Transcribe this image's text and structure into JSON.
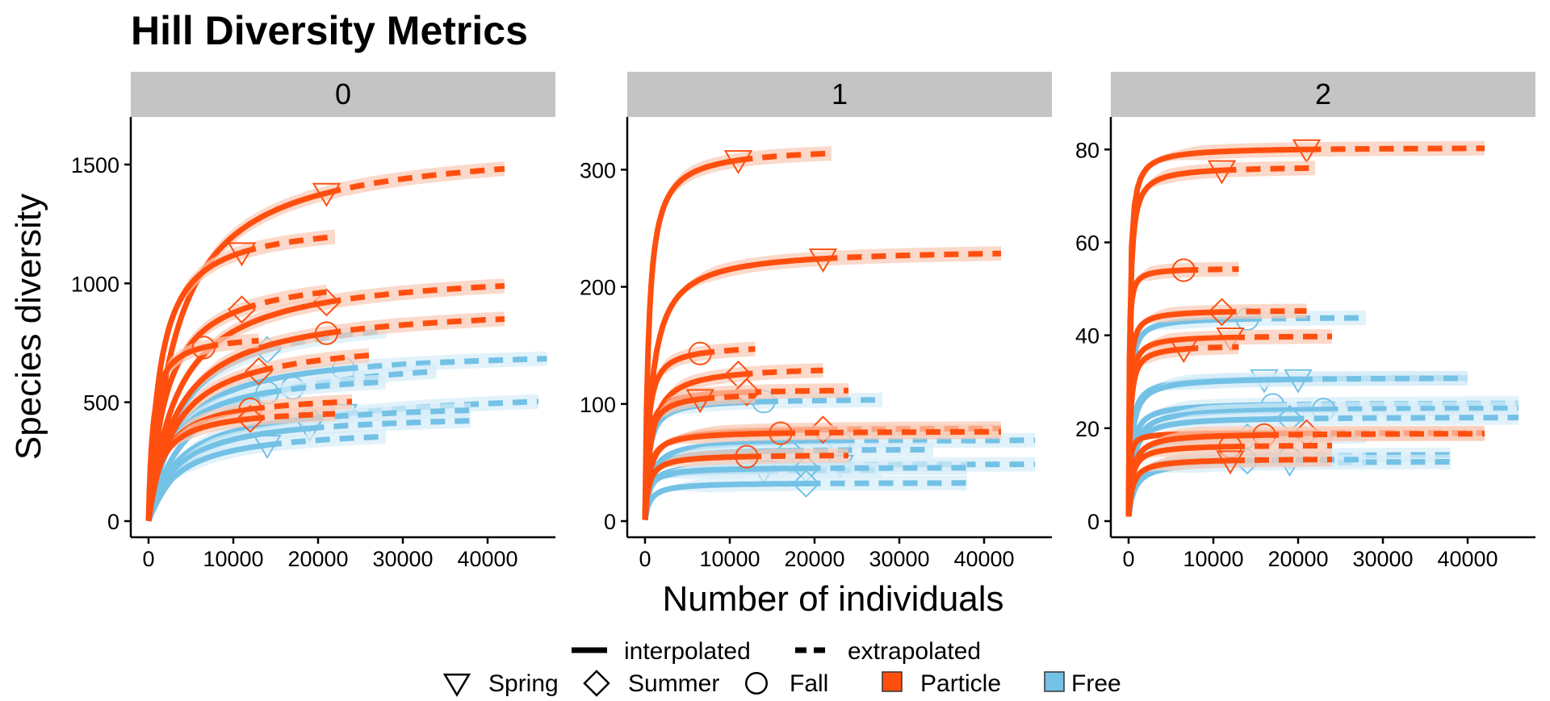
{
  "colors": {
    "particle": "#FF4F0F",
    "free": "#74C1E6",
    "particle_band": "#F9C9B4",
    "free_band": "#D6EDF8",
    "strip": "#C4C4C4",
    "axis": "#000000"
  },
  "chart_data": {
    "type": "line",
    "title": "Hill Diversity Metrics",
    "xlabel": "Number of individuals",
    "ylabel": "Species diversity",
    "grid": false,
    "legend": {
      "position": "bottom",
      "method": [
        "interpolated",
        "extrapolated"
      ],
      "season": [
        "Spring",
        "Summer",
        "Fall"
      ],
      "fraction": [
        "Particle",
        "Free"
      ]
    },
    "panels": [
      {
        "name": "0",
        "xlim": [
          0,
          48000
        ],
        "ylim": [
          0,
          1700
        ],
        "xticks": [
          0,
          10000,
          20000,
          30000,
          40000
        ],
        "yticks": [
          0,
          500,
          1000,
          1500
        ],
        "series": [
          {
            "fraction": "Particle",
            "season": "Spring",
            "n": 21000,
            "value": 1380,
            "asymptote": 1600,
            "extrap_end": 42000
          },
          {
            "fraction": "Particle",
            "season": "Spring",
            "n": 11000,
            "value": 1130,
            "asymptote": 1270,
            "extrap_end": 22000
          },
          {
            "fraction": "Particle",
            "season": "Summer",
            "n": 21000,
            "value": 920,
            "asymptote": 1070,
            "extrap_end": 42000
          },
          {
            "fraction": "Particle",
            "season": "Summer",
            "n": 11000,
            "value": 890,
            "asymptote": 1060,
            "extrap_end": 21000
          },
          {
            "fraction": "Particle",
            "season": "Fall",
            "n": 21000,
            "value": 790,
            "asymptote": 920,
            "extrap_end": 42000
          },
          {
            "fraction": "Particle",
            "season": "Fall",
            "n": 6500,
            "value": 730,
            "asymptote": 790,
            "extrap_end": 13000
          },
          {
            "fraction": "Particle",
            "season": "Summer",
            "n": 13000,
            "value": 630,
            "asymptote": 780,
            "extrap_end": 26000
          },
          {
            "fraction": "Particle",
            "season": "Fall",
            "n": 12000,
            "value": 470,
            "asymptote": 540,
            "extrap_end": 24000
          },
          {
            "fraction": "Particle",
            "season": "Summer",
            "n": 12000,
            "value": 430,
            "asymptote": 480,
            "extrap_end": 22000
          },
          {
            "fraction": "Free",
            "season": "Summer",
            "n": 14000,
            "value": 720,
            "asymptote": 900,
            "extrap_end": 28000
          },
          {
            "fraction": "Free",
            "season": "Fall",
            "n": 23000,
            "value": 640,
            "asymptote": 730,
            "extrap_end": 47000
          },
          {
            "fraction": "Free",
            "season": "Fall",
            "n": 17000,
            "value": 560,
            "asymptote": 720,
            "extrap_end": 34000
          },
          {
            "fraction": "Free",
            "season": "Fall",
            "n": 14000,
            "value": 540,
            "asymptote": 640,
            "extrap_end": 28000
          },
          {
            "fraction": "Free",
            "season": "Spring",
            "n": 23000,
            "value": 450,
            "asymptote": 570,
            "extrap_end": 46000
          },
          {
            "fraction": "Free",
            "season": "Summer",
            "n": 19000,
            "value": 430,
            "asymptote": 510,
            "extrap_end": 38000
          },
          {
            "fraction": "Free",
            "season": "Spring",
            "n": 19000,
            "value": 390,
            "asymptote": 460,
            "extrap_end": 38000
          },
          {
            "fraction": "Free",
            "season": "Spring",
            "n": 14000,
            "value": 320,
            "asymptote": 400,
            "extrap_end": 28000
          }
        ]
      },
      {
        "name": "1",
        "xlim": [
          0,
          48000
        ],
        "ylim": [
          0,
          345
        ],
        "xticks": [
          0,
          10000,
          20000,
          30000,
          40000
        ],
        "yticks": [
          0,
          100,
          200,
          300
        ],
        "series": [
          {
            "fraction": "Particle",
            "season": "Spring",
            "n": 11000,
            "value": 308,
            "asymptote": 320,
            "extrap_end": 22000
          },
          {
            "fraction": "Particle",
            "season": "Spring",
            "n": 21000,
            "value": 224,
            "asymptote": 233,
            "extrap_end": 42000
          },
          {
            "fraction": "Particle",
            "season": "Fall",
            "n": 6500,
            "value": 143,
            "asymptote": 151,
            "extrap_end": 13000
          },
          {
            "fraction": "Particle",
            "season": "Summer",
            "n": 11000,
            "value": 125,
            "asymptote": 133,
            "extrap_end": 21000
          },
          {
            "fraction": "Particle",
            "season": "Summer",
            "n": 12000,
            "value": 110,
            "asymptote": 113,
            "extrap_end": 24000
          },
          {
            "fraction": "Particle",
            "season": "Spring",
            "n": 6500,
            "value": 104,
            "asymptote": 110,
            "extrap_end": 13000
          },
          {
            "fraction": "Free",
            "season": "Fall",
            "n": 14000,
            "value": 102,
            "asymptote": 105,
            "extrap_end": 28000
          },
          {
            "fraction": "Particle",
            "season": "Summer",
            "n": 21000,
            "value": 78,
            "asymptote": 80,
            "extrap_end": 42000
          },
          {
            "fraction": "Particle",
            "season": "Fall",
            "n": 16000,
            "value": 75,
            "asymptote": 77,
            "extrap_end": 42000
          },
          {
            "fraction": "Free",
            "season": "Fall",
            "n": 23000,
            "value": 68,
            "asymptote": 70,
            "extrap_end": 46000
          },
          {
            "fraction": "Free",
            "season": "Summer",
            "n": 17000,
            "value": 60,
            "asymptote": 62,
            "extrap_end": 34000
          },
          {
            "fraction": "Particle",
            "season": "Fall",
            "n": 12000,
            "value": 55,
            "asymptote": 57,
            "extrap_end": 24000
          },
          {
            "fraction": "Free",
            "season": "Spring",
            "n": 23000,
            "value": 48,
            "asymptote": 49,
            "extrap_end": 46000
          },
          {
            "fraction": "Free",
            "season": "Spring",
            "n": 14000,
            "value": 43,
            "asymptote": 44,
            "extrap_end": 28000
          },
          {
            "fraction": "Free",
            "season": "Summer",
            "n": 19000,
            "value": 45,
            "asymptote": 46,
            "extrap_end": 38000
          },
          {
            "fraction": "Free",
            "season": "Summer",
            "n": 19000,
            "value": 32,
            "asymptote": 33,
            "extrap_end": 38000
          }
        ]
      },
      {
        "name": "2",
        "xlim": [
          0,
          48000
        ],
        "ylim": [
          0,
          87
        ],
        "xticks": [
          0,
          10000,
          20000,
          30000,
          40000
        ],
        "yticks": [
          0,
          20,
          40,
          60,
          80
        ],
        "series": [
          {
            "fraction": "Particle",
            "season": "Spring",
            "n": 21000,
            "value": 80,
            "asymptote": 80.5,
            "extrap_end": 42000
          },
          {
            "fraction": "Particle",
            "season": "Spring",
            "n": 11000,
            "value": 75.5,
            "asymptote": 76.5,
            "extrap_end": 22000
          },
          {
            "fraction": "Particle",
            "season": "Fall",
            "n": 6500,
            "value": 54,
            "asymptote": 54.5,
            "extrap_end": 13000
          },
          {
            "fraction": "Particle",
            "season": "Summer",
            "n": 11000,
            "value": 45,
            "asymptote": 45.5,
            "extrap_end": 21000
          },
          {
            "fraction": "Free",
            "season": "Fall",
            "n": 14000,
            "value": 43.5,
            "asymptote": 44,
            "extrap_end": 28000
          },
          {
            "fraction": "Particle",
            "season": "Spring",
            "n": 12000,
            "value": 39.5,
            "asymptote": 40,
            "extrap_end": 24000
          },
          {
            "fraction": "Particle",
            "season": "Spring",
            "n": 6500,
            "value": 37,
            "asymptote": 38,
            "extrap_end": 13000
          },
          {
            "fraction": "Free",
            "season": "Spring",
            "n": 16000,
            "value": 30.5,
            "asymptote": 31,
            "extrap_end": 40000
          },
          {
            "fraction": "Free",
            "season": "Spring",
            "n": 20000,
            "value": 30.5,
            "asymptote": 31,
            "extrap_end": 40000
          },
          {
            "fraction": "Free",
            "season": "Fall",
            "n": 17000,
            "value": 25,
            "asymptote": 25.5,
            "extrap_end": 46000
          },
          {
            "fraction": "Free",
            "season": "Fall",
            "n": 23000,
            "value": 24,
            "asymptote": 24.5,
            "extrap_end": 46000
          },
          {
            "fraction": "Free",
            "season": "Summer",
            "n": 19000,
            "value": 22,
            "asymptote": 22.5,
            "extrap_end": 46000
          },
          {
            "fraction": "Particle",
            "season": "Summer",
            "n": 21000,
            "value": 19,
            "asymptote": 19,
            "extrap_end": 42000
          },
          {
            "fraction": "Particle",
            "season": "Fall",
            "n": 16000,
            "value": 18.5,
            "asymptote": 19,
            "extrap_end": 42000
          },
          {
            "fraction": "Free",
            "season": "Summer",
            "n": 14000,
            "value": 18,
            "asymptote": 18.5,
            "extrap_end": 28000
          },
          {
            "fraction": "Particle",
            "season": "Fall",
            "n": 12000,
            "value": 16,
            "asymptote": 16.5,
            "extrap_end": 24000
          },
          {
            "fraction": "Free",
            "season": "Summer",
            "n": 19000,
            "value": 14,
            "asymptote": 14.5,
            "extrap_end": 38000
          },
          {
            "fraction": "Particle",
            "season": "Spring",
            "n": 12000,
            "value": 13,
            "asymptote": 13.5,
            "extrap_end": 24000
          },
          {
            "fraction": "Free",
            "season": "Spring",
            "n": 19000,
            "value": 12.5,
            "asymptote": 13,
            "extrap_end": 38000
          },
          {
            "fraction": "Free",
            "season": "Summer",
            "n": 14000,
            "value": 13,
            "asymptote": 13.5,
            "extrap_end": 28000
          }
        ]
      }
    ]
  }
}
